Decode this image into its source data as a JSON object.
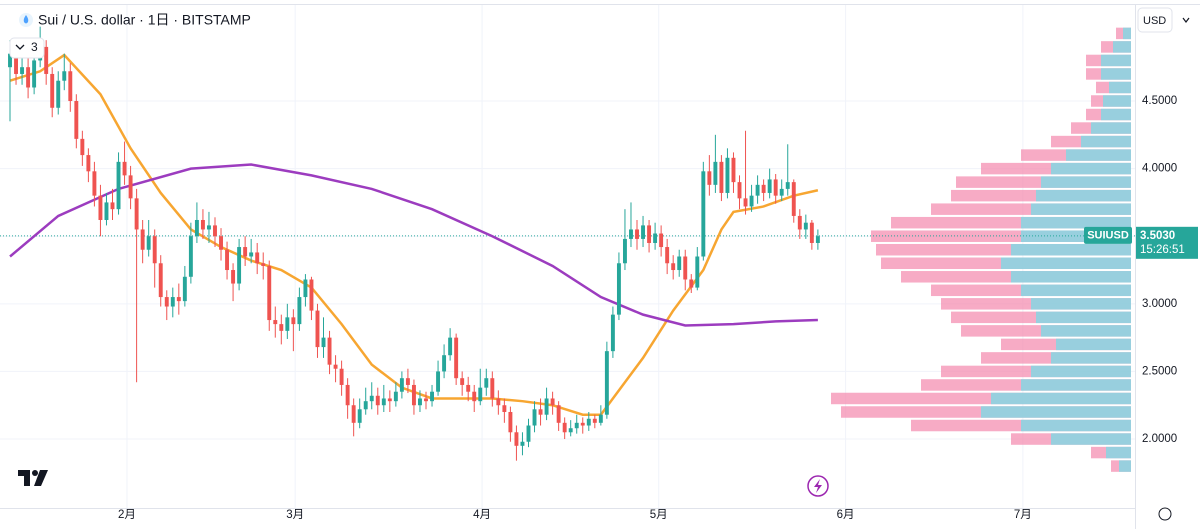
{
  "chart_data": {
    "type": "candlestick",
    "title": "Sui / U.S. dollar · 1日 · BITSTAMP",
    "indicator_count": "3",
    "currency": "USD",
    "symbol": "SUIUSD",
    "countdown": "15:26:51",
    "last_price": {
      "value": 3.503,
      "label": "3.5030"
    },
    "up_color": "#26a69a",
    "down_color": "#ef5350",
    "xlim": [
      -1.66,
      186.6
    ],
    "xticks": [
      {
        "value": 19.4,
        "label": "2月"
      },
      {
        "value": 47.3,
        "label": "3月"
      },
      {
        "value": 78.3,
        "label": "4月"
      },
      {
        "value": 107.6,
        "label": "5月"
      },
      {
        "value": 138.6,
        "label": "6月"
      },
      {
        "value": 168.0,
        "label": "7月"
      }
    ],
    "ylim": [
      1.49,
      5.247
    ],
    "yticks": [
      {
        "value": 2.0,
        "label": "2.0000"
      },
      {
        "value": 2.5,
        "label": "2.5000"
      },
      {
        "value": 3.0,
        "label": "3.0000"
      },
      {
        "value": 3.5,
        "label": "3.5000"
      },
      {
        "value": 4.0,
        "label": "4.0000"
      },
      {
        "value": 4.5,
        "label": "4.5000"
      }
    ],
    "grid": true,
    "open": [
      4.75,
      4.85,
      4.7,
      4.75,
      4.6,
      4.8,
      4.9,
      4.7,
      4.45,
      4.65,
      4.72,
      4.5,
      4.22,
      4.1,
      3.98,
      3.8,
      3.62,
      3.75,
      3.7,
      4.05,
      3.95,
      3.78,
      3.55,
      3.4,
      3.5,
      3.3,
      3.05,
      2.98,
      3.05,
      3.02,
      3.2,
      3.5,
      3.62,
      3.55,
      3.58,
      3.5,
      3.4,
      3.25,
      3.15,
      3.42,
      3.35,
      3.38,
      3.3,
      3.28,
      2.88,
      2.85,
      2.8,
      2.9,
      2.85,
      3.05,
      3.18,
      2.95,
      2.68,
      2.75,
      2.55,
      2.52,
      2.4,
      2.25,
      2.12,
      2.22,
      2.28,
      2.32,
      2.25,
      2.3,
      2.28,
      2.35,
      2.45,
      2.4,
      2.25,
      2.3,
      2.28,
      2.35,
      2.5,
      2.62,
      2.75,
      2.45,
      2.4,
      2.35,
      2.28,
      2.38,
      2.45,
      2.3,
      2.25,
      2.2,
      2.05,
      1.95,
      1.98,
      2.1,
      2.22,
      2.18,
      2.3,
      2.25,
      2.12,
      2.05,
      2.08,
      2.12,
      2.1,
      2.15,
      2.12,
      2.18,
      2.65,
      2.92,
      3.3,
      3.48,
      3.55,
      3.48,
      3.58,
      3.45,
      3.52,
      3.42,
      3.3,
      3.25,
      3.35,
      3.18,
      3.12,
      3.35,
      3.98,
      3.88,
      4.05,
      3.82,
      4.08,
      3.9,
      3.78,
      3.72,
      3.8,
      3.88,
      3.82,
      3.92,
      3.8,
      3.85,
      3.9,
      3.65,
      3.55,
      3.6,
      3.45
    ],
    "high": [
      4.95,
      4.92,
      4.85,
      4.82,
      4.88,
      5.05,
      4.95,
      4.75,
      4.72,
      4.85,
      4.78,
      4.55,
      4.28,
      4.15,
      4.05,
      3.88,
      3.82,
      3.85,
      4.12,
      4.2,
      4.02,
      3.85,
      3.62,
      3.62,
      3.55,
      3.36,
      3.1,
      3.12,
      3.15,
      3.28,
      3.6,
      3.75,
      3.7,
      3.68,
      3.64,
      3.56,
      3.46,
      3.3,
      3.48,
      3.5,
      3.48,
      3.45,
      3.38,
      3.32,
      2.98,
      2.92,
      3.0,
      2.96,
      3.12,
      3.22,
      3.2,
      3.0,
      2.9,
      2.8,
      2.62,
      2.58,
      2.45,
      2.3,
      2.3,
      2.38,
      2.42,
      2.38,
      2.4,
      2.36,
      2.42,
      2.5,
      2.52,
      2.44,
      2.36,
      2.35,
      2.4,
      2.58,
      2.7,
      2.82,
      2.78,
      2.5,
      2.46,
      2.4,
      2.52,
      2.52,
      2.5,
      2.36,
      2.3,
      2.24,
      2.1,
      2.05,
      2.15,
      2.28,
      2.3,
      2.38,
      2.35,
      2.28,
      2.16,
      2.14,
      2.18,
      2.16,
      2.2,
      2.18,
      2.25,
      2.72,
      2.98,
      3.38,
      3.7,
      3.75,
      3.62,
      3.65,
      3.62,
      3.6,
      3.58,
      3.48,
      3.36,
      3.4,
      3.4,
      3.22,
      3.42,
      4.05,
      4.1,
      4.25,
      4.1,
      4.15,
      4.12,
      3.95,
      4.28,
      3.88,
      3.95,
      3.92,
      4.0,
      3.96,
      3.92,
      4.18,
      3.92,
      3.7,
      3.66,
      3.62,
      3.55
    ],
    "low": [
      4.35,
      4.62,
      4.62,
      4.52,
      4.55,
      4.75,
      4.62,
      4.38,
      4.4,
      4.58,
      4.42,
      4.15,
      4.02,
      3.9,
      3.72,
      3.5,
      3.58,
      3.62,
      3.66,
      3.88,
      3.7,
      2.42,
      3.3,
      3.35,
      3.12,
      2.98,
      2.88,
      2.9,
      2.92,
      2.98,
      3.15,
      3.45,
      3.48,
      3.45,
      3.42,
      3.32,
      3.18,
      3.02,
      3.1,
      3.28,
      3.3,
      3.22,
      3.18,
      2.8,
      2.75,
      2.7,
      2.74,
      2.65,
      2.8,
      2.98,
      2.88,
      2.6,
      2.6,
      2.48,
      2.42,
      2.32,
      2.15,
      2.02,
      2.08,
      2.18,
      2.22,
      2.18,
      2.2,
      2.2,
      2.24,
      2.3,
      2.34,
      2.18,
      2.2,
      2.22,
      2.24,
      2.32,
      2.45,
      2.58,
      2.4,
      2.32,
      2.28,
      2.2,
      2.25,
      2.32,
      2.24,
      2.18,
      2.12,
      1.98,
      1.84,
      1.88,
      1.94,
      2.05,
      2.1,
      2.14,
      2.18,
      2.06,
      2.0,
      2.02,
      2.04,
      2.04,
      2.06,
      2.08,
      2.1,
      2.15,
      2.6,
      2.88,
      3.25,
      3.42,
      3.4,
      3.42,
      3.38,
      3.4,
      3.35,
      3.22,
      3.18,
      3.2,
      3.1,
      3.08,
      3.1,
      3.32,
      3.8,
      3.82,
      3.76,
      3.78,
      3.82,
      3.7,
      3.66,
      3.68,
      3.74,
      3.76,
      3.78,
      3.74,
      3.76,
      3.8,
      3.6,
      3.48,
      3.48,
      3.4,
      3.4
    ],
    "close": [
      4.85,
      4.7,
      4.75,
      4.6,
      4.8,
      4.9,
      4.7,
      4.45,
      4.65,
      4.72,
      4.5,
      4.22,
      4.1,
      3.98,
      3.8,
      3.62,
      3.75,
      3.7,
      4.05,
      3.95,
      3.78,
      3.55,
      3.4,
      3.5,
      3.3,
      3.05,
      2.98,
      3.05,
      3.02,
      3.2,
      3.5,
      3.62,
      3.55,
      3.58,
      3.5,
      3.4,
      3.25,
      3.15,
      3.42,
      3.35,
      3.38,
      3.3,
      3.28,
      2.88,
      2.85,
      2.8,
      2.9,
      2.85,
      3.05,
      3.18,
      2.95,
      2.68,
      2.75,
      2.55,
      2.52,
      2.4,
      2.25,
      2.12,
      2.22,
      2.28,
      2.32,
      2.25,
      2.3,
      2.28,
      2.35,
      2.45,
      2.4,
      2.25,
      2.3,
      2.28,
      2.35,
      2.5,
      2.62,
      2.75,
      2.45,
      2.4,
      2.35,
      2.28,
      2.38,
      2.45,
      2.3,
      2.25,
      2.2,
      2.05,
      1.95,
      1.98,
      2.1,
      2.22,
      2.18,
      2.3,
      2.25,
      2.12,
      2.05,
      2.08,
      2.12,
      2.1,
      2.15,
      2.12,
      2.18,
      2.65,
      2.92,
      3.3,
      3.48,
      3.55,
      3.48,
      3.58,
      3.45,
      3.52,
      3.42,
      3.3,
      3.25,
      3.35,
      3.18,
      3.12,
      3.35,
      3.98,
      3.88,
      4.05,
      3.82,
      4.08,
      3.9,
      3.78,
      3.72,
      3.8,
      3.88,
      3.82,
      3.92,
      3.8,
      3.85,
      3.9,
      3.65,
      3.55,
      3.6,
      3.45,
      3.5
    ],
    "series": [
      {
        "color": "#f7a631",
        "x": [
          0,
          5,
          9,
          15,
          20,
          25,
          30,
          35,
          40,
          45,
          50,
          55,
          60,
          65,
          70,
          75,
          80,
          85,
          90,
          95,
          98,
          100,
          105,
          110,
          115,
          118,
          120,
          125,
          130,
          134
        ],
        "values": [
          4.65,
          4.72,
          4.84,
          4.55,
          4.15,
          3.82,
          3.55,
          3.42,
          3.32,
          3.25,
          3.12,
          2.85,
          2.55,
          2.38,
          2.3,
          2.3,
          2.3,
          2.28,
          2.25,
          2.18,
          2.18,
          2.3,
          2.6,
          2.95,
          3.25,
          3.55,
          3.68,
          3.72,
          3.8,
          3.84
        ]
      },
      {
        "color": "#9c3cbf",
        "x": [
          0,
          8,
          18,
          30,
          40,
          50,
          60,
          70,
          80,
          90,
          98,
          105,
          112,
          120,
          127,
          134
        ],
        "values": [
          3.35,
          3.65,
          3.85,
          4.0,
          4.03,
          3.95,
          3.85,
          3.7,
          3.5,
          3.28,
          3.05,
          2.92,
          2.84,
          2.85,
          2.87,
          2.88
        ]
      }
    ],
    "volume_profile": {
      "up_color": "#7fd8e4",
      "down_color": "#f48fb1",
      "price": [
        1.8,
        1.9,
        2.0,
        2.1,
        2.2,
        2.3,
        2.4,
        2.5,
        2.6,
        2.7,
        2.8,
        2.9,
        3.0,
        3.1,
        3.2,
        3.3,
        3.4,
        3.5,
        3.6,
        3.7,
        3.8,
        3.9,
        4.0,
        4.1,
        4.2,
        4.3,
        4.4,
        4.5,
        4.6,
        4.7,
        4.8,
        4.9,
        5.0
      ],
      "volume": [
        20,
        40,
        120,
        220,
        290,
        300,
        210,
        190,
        150,
        130,
        170,
        180,
        190,
        200,
        230,
        250,
        255,
        260,
        240,
        200,
        180,
        175,
        150,
        110,
        80,
        60,
        45,
        40,
        35,
        45,
        45,
        30,
        15
      ],
      "up_volume": [
        12,
        25,
        80,
        110,
        150,
        140,
        110,
        100,
        80,
        75,
        90,
        95,
        100,
        110,
        120,
        130,
        120,
        110,
        110,
        100,
        95,
        90,
        80,
        65,
        50,
        40,
        30,
        28,
        22,
        30,
        30,
        18,
        8
      ]
    }
  }
}
